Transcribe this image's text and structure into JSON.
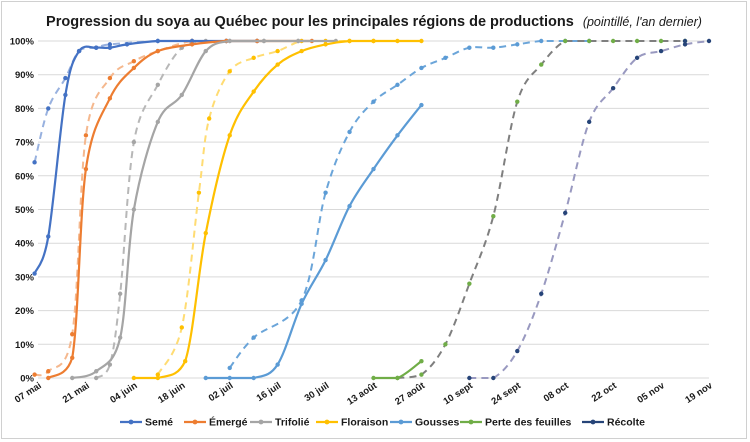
{
  "chart_data": {
    "type": "line",
    "title": "Progression du soya au Québec pour les principales régions de productions",
    "subtitle": "(pointillé, l'an dernier)",
    "xlabel": "",
    "ylabel": "",
    "x_ticks": [
      "07 mai",
      "21 mai",
      "04 juin",
      "18 juin",
      "02 juil",
      "16 juil",
      "30 juil",
      "13 août",
      "27 août",
      "10 sept",
      "24 sept",
      "08 oct",
      "22 oct",
      "05 nov",
      "19 nov"
    ],
    "x_range_days": [
      0,
      196
    ],
    "y_ticks": [
      "0%",
      "10%",
      "20%",
      "30%",
      "40%",
      "50%",
      "60%",
      "70%",
      "80%",
      "90%",
      "100%"
    ],
    "ylim": [
      0,
      100
    ],
    "grid": "horizontal",
    "legend_position": "bottom",
    "series": [
      {
        "name": "Semé",
        "color": "#4472c4",
        "current": [
          [
            -1,
            31
          ],
          [
            3,
            42
          ],
          [
            8,
            84
          ],
          [
            12,
            97
          ],
          [
            17,
            98
          ],
          [
            21,
            98
          ],
          [
            26,
            99
          ],
          [
            35,
            100
          ],
          [
            45,
            100
          ],
          [
            55,
            100
          ],
          [
            64,
            100
          ]
        ],
        "previous": [
          [
            -1,
            64
          ],
          [
            3,
            80
          ],
          [
            8,
            89
          ],
          [
            12,
            97
          ],
          [
            17,
            98
          ],
          [
            21,
            99
          ],
          [
            35,
            100
          ],
          [
            45,
            100
          ],
          [
            55,
            100
          ]
        ]
      },
      {
        "name": "Émergé",
        "color": "#ed7d31",
        "current": [
          [
            3,
            0
          ],
          [
            10,
            6
          ],
          [
            14,
            62
          ],
          [
            21,
            83
          ],
          [
            28,
            92
          ],
          [
            35,
            97
          ],
          [
            45,
            99
          ],
          [
            55,
            100
          ],
          [
            64,
            100
          ],
          [
            80,
            100
          ]
        ],
        "previous": [
          [
            -1,
            1
          ],
          [
            3,
            2
          ],
          [
            10,
            13
          ],
          [
            14,
            72
          ],
          [
            21,
            89
          ],
          [
            28,
            94
          ],
          [
            35,
            97
          ],
          [
            45,
            100
          ],
          [
            55,
            100
          ],
          [
            64,
            100
          ]
        ]
      },
      {
        "name": "Trifolié",
        "color": "#a5a5a5",
        "current": [
          [
            10,
            0
          ],
          [
            17,
            2
          ],
          [
            24,
            12
          ],
          [
            28,
            50
          ],
          [
            35,
            76
          ],
          [
            42,
            84
          ],
          [
            49,
            97
          ],
          [
            56,
            100
          ],
          [
            66,
            100
          ],
          [
            76,
            100
          ],
          [
            87,
            100
          ]
        ],
        "previous": [
          [
            17,
            0
          ],
          [
            21,
            4
          ],
          [
            24,
            25
          ],
          [
            28,
            70
          ],
          [
            35,
            87
          ],
          [
            42,
            98
          ],
          [
            49,
            100
          ],
          [
            56,
            100
          ],
          [
            66,
            100
          ],
          [
            76,
            100
          ]
        ]
      },
      {
        "name": "Floraison",
        "color": "#ffc000",
        "current": [
          [
            28,
            0
          ],
          [
            35,
            0
          ],
          [
            43,
            5
          ],
          [
            49,
            43
          ],
          [
            56,
            72
          ],
          [
            63,
            85
          ],
          [
            70,
            93
          ],
          [
            77,
            97
          ],
          [
            84,
            99
          ],
          [
            91,
            100
          ],
          [
            98,
            100
          ],
          [
            105,
            100
          ],
          [
            112,
            100
          ]
        ],
        "previous": [
          [
            35,
            1
          ],
          [
            42,
            15
          ],
          [
            47,
            55
          ],
          [
            50,
            77
          ],
          [
            56,
            91
          ],
          [
            63,
            95
          ],
          [
            70,
            97
          ],
          [
            77,
            100
          ],
          [
            84,
            100
          ],
          [
            91,
            100
          ],
          [
            98,
            100
          ]
        ]
      },
      {
        "name": "Gousses",
        "color": "#5b9bd5",
        "current": [
          [
            49,
            0
          ],
          [
            56,
            0
          ],
          [
            63,
            0
          ],
          [
            70,
            4
          ],
          [
            77,
            22
          ],
          [
            84,
            35
          ],
          [
            91,
            51
          ],
          [
            98,
            62
          ],
          [
            105,
            72
          ],
          [
            112,
            81
          ]
        ],
        "previous": [
          [
            56,
            3
          ],
          [
            63,
            12
          ],
          [
            77,
            23
          ],
          [
            84,
            55
          ],
          [
            91,
            73
          ],
          [
            98,
            82
          ],
          [
            105,
            87
          ],
          [
            112,
            92
          ],
          [
            119,
            95
          ],
          [
            126,
            98
          ],
          [
            133,
            98
          ],
          [
            140,
            99
          ],
          [
            147,
            100
          ],
          [
            154,
            100
          ],
          [
            161,
            100
          ]
        ]
      },
      {
        "name": "Perte des feuilles",
        "color": "#70ad47",
        "current": [
          [
            98,
            0
          ],
          [
            105,
            0
          ],
          [
            112,
            5
          ]
        ],
        "previous": [
          [
            105,
            0
          ],
          [
            112,
            1
          ],
          [
            119,
            10
          ],
          [
            126,
            28
          ],
          [
            133,
            48
          ],
          [
            140,
            82
          ],
          [
            147,
            93
          ],
          [
            154,
            100
          ],
          [
            161,
            100
          ],
          [
            168,
            100
          ],
          [
            175,
            100
          ],
          [
            182,
            100
          ],
          [
            189,
            100
          ]
        ]
      },
      {
        "name": "Récolte",
        "color": "#264478",
        "current": [
          [
            189,
            100
          ]
        ],
        "previous": [
          [
            126,
            0
          ],
          [
            133,
            0
          ],
          [
            140,
            8
          ],
          [
            147,
            25
          ],
          [
            154,
            49
          ],
          [
            161,
            76
          ],
          [
            168,
            86
          ],
          [
            175,
            95
          ],
          [
            182,
            97
          ],
          [
            189,
            99
          ],
          [
            196,
            100
          ]
        ]
      }
    ]
  }
}
